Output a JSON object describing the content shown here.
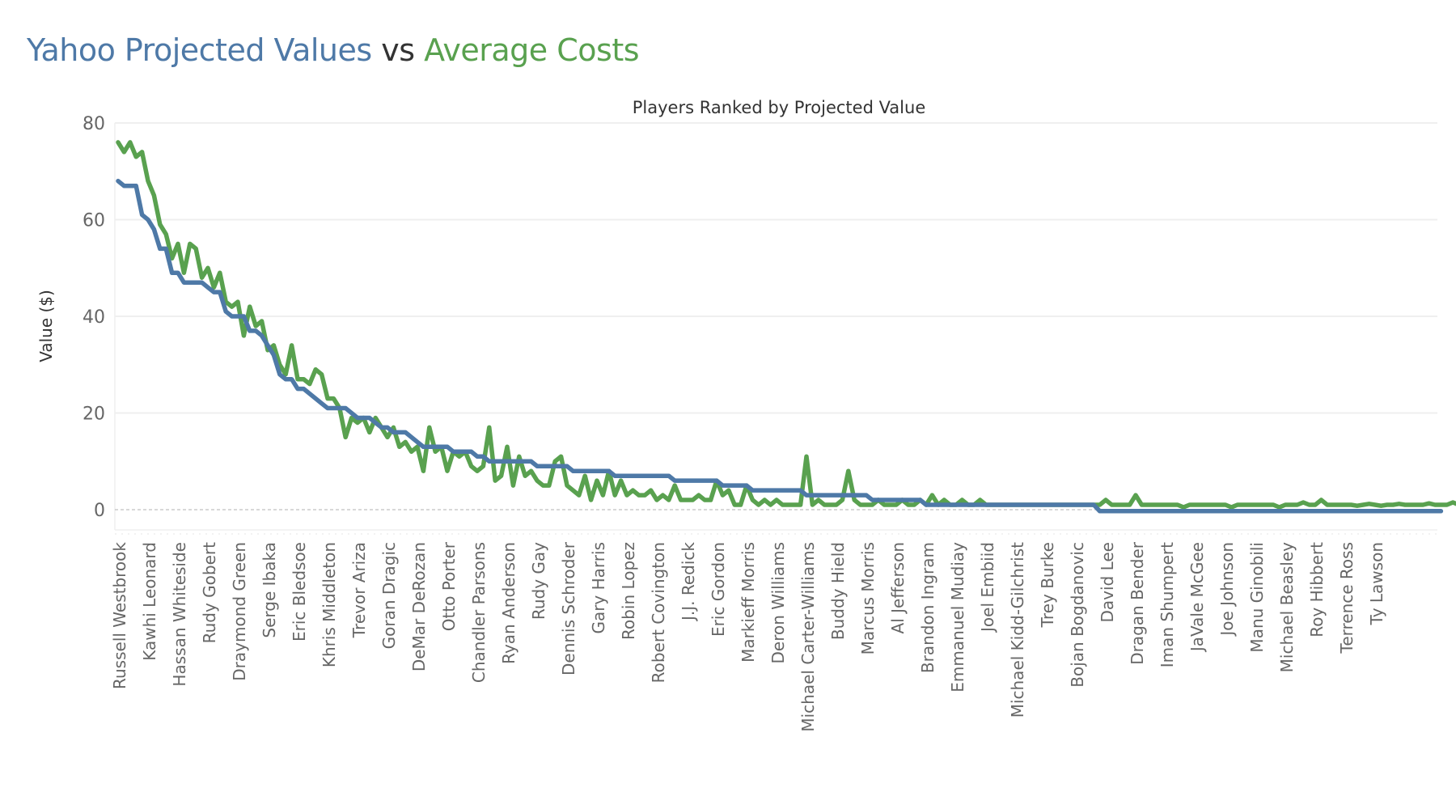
{
  "header": {
    "title_part1": "Yahoo Projected Values",
    "title_part2": " vs ",
    "title_part3": "Average Costs"
  },
  "colors": {
    "projected": "#4e79a7",
    "average_cost": "#59a14f",
    "grid": "#efefef",
    "zero_line": "#c0c0c0"
  },
  "chart_data": {
    "type": "line",
    "title": "Players Ranked by Projected Value",
    "xlabel": "",
    "ylabel": "Value ($)",
    "ylim": [
      -5,
      80
    ],
    "yticks": [
      0,
      20,
      40,
      60,
      80
    ],
    "grid": true,
    "legend": "title-colored",
    "x_label_every": 5,
    "x_tick_labels": [
      "Russell Westbrook",
      "Kawhi Leonard",
      "Hassan Whiteside",
      "Rudy Gobert",
      "Draymond Green",
      "Serge Ibaka",
      "Eric Bledsoe",
      "Khris Middleton",
      "Trevor Ariza",
      "Goran Dragic",
      "DeMar DeRozan",
      "Otto Porter",
      "Chandler Parsons",
      "Ryan Anderson",
      "Rudy Gay",
      "Dennis Schroder",
      "Gary Harris",
      "Robin Lopez",
      "Robert Covington",
      "J.J. Redick",
      "Eric Gordon",
      "Markieff Morris",
      "Deron Williams",
      "Michael Carter-Williams",
      "Buddy Hield",
      "Marcus Morris",
      "Al Jefferson",
      "Brandon Ingram",
      "Emmanuel Mudiay",
      "Joel Embiid",
      "Michael Kidd-Gilchrist",
      "Trey Burke",
      "Bojan Bogdanovic",
      "David Lee",
      "Dragan Bender",
      "Iman Shumpert",
      "JaVale McGee",
      "Joe Johnson",
      "Manu Ginobili",
      "Michael Beasley",
      "Roy Hibbert",
      "Terrence Ross",
      "Ty Lawson"
    ],
    "series": [
      {
        "name": "Yahoo Projected Values",
        "color": "#4e79a7",
        "values": [
          68,
          67,
          67,
          67,
          61,
          60,
          58,
          54,
          54,
          49,
          49,
          47,
          47,
          47,
          47,
          46,
          45,
          45,
          41,
          40,
          40,
          40,
          37,
          37,
          36,
          34,
          32,
          28,
          27,
          27,
          25,
          25,
          24,
          23,
          22,
          21,
          21,
          21,
          21,
          20,
          19,
          19,
          19,
          18,
          17,
          17,
          16,
          16,
          16,
          15,
          14,
          13,
          13,
          13,
          13,
          13,
          12,
          12,
          12,
          12,
          11,
          11,
          10,
          10,
          10,
          10,
          10,
          10,
          10,
          10,
          9,
          9,
          9,
          9,
          9,
          9,
          8,
          8,
          8,
          8,
          8,
          8,
          8,
          7,
          7,
          7,
          7,
          7,
          7,
          7,
          7,
          7,
          7,
          6,
          6,
          6,
          6,
          6,
          6,
          6,
          6,
          5,
          5,
          5,
          5,
          5,
          4,
          4,
          4,
          4,
          4,
          4,
          4,
          4,
          4,
          3,
          3,
          3,
          3,
          3,
          3,
          3,
          3,
          3,
          3,
          3,
          2,
          2,
          2,
          2,
          2,
          2,
          2,
          2,
          2,
          1,
          1,
          1,
          1,
          1,
          1,
          1,
          1,
          1,
          1,
          1,
          1,
          1,
          1,
          1,
          1,
          1,
          1,
          1,
          1,
          1,
          1,
          1,
          1,
          1,
          1,
          1,
          1,
          1,
          -0.3,
          -0.3,
          -0.3,
          -0.3,
          -0.3,
          -0.3,
          -0.3,
          -0.3,
          -0.3,
          -0.3,
          -0.3,
          -0.3,
          -0.3,
          -0.3,
          -0.3,
          -0.3,
          -0.3,
          -0.3,
          -0.3,
          -0.3,
          -0.3,
          -0.3,
          -0.3,
          -0.3,
          -0.3,
          -0.3,
          -0.3,
          -0.3,
          -0.3,
          -0.3,
          -0.3,
          -0.3,
          -0.3,
          -0.3,
          -0.3,
          -0.3,
          -0.3,
          -0.3,
          -0.3,
          -0.3,
          -0.3,
          -0.3,
          -0.3,
          -0.3,
          -0.3,
          -0.3,
          -0.3,
          -0.3,
          -0.3,
          -0.3,
          -0.3,
          -0.3,
          -0.3,
          -0.3,
          -0.3,
          -0.3,
          -0.3,
          -0.3
        ]
      },
      {
        "name": "Average Costs",
        "color": "#59a14f",
        "values": [
          76,
          74,
          76,
          73,
          74,
          68,
          65,
          59,
          57,
          52,
          55,
          49,
          55,
          54,
          48,
          50,
          46,
          49,
          43,
          42,
          43,
          36,
          42,
          38,
          39,
          33,
          34,
          30,
          28,
          34,
          27,
          27,
          26,
          29,
          28,
          23,
          23,
          21,
          15,
          19,
          18,
          19,
          16,
          19,
          17,
          15,
          17,
          13,
          14,
          12,
          13,
          8,
          17,
          12,
          13,
          8,
          12,
          11,
          12,
          9,
          8,
          9,
          17,
          6,
          7,
          13,
          5,
          11,
          7,
          8,
          6,
          5,
          5,
          10,
          11,
          5,
          4,
          3,
          7,
          2,
          6,
          3,
          8,
          3,
          6,
          3,
          4,
          3,
          3,
          4,
          2,
          3,
          2,
          5,
          2,
          2,
          2,
          3,
          2,
          2,
          6,
          3,
          4,
          1,
          1,
          5,
          2,
          1,
          2,
          1,
          2,
          1,
          1,
          1,
          1,
          11,
          1,
          2,
          1,
          1,
          1,
          2,
          8,
          2,
          1,
          1,
          1,
          2,
          1,
          1,
          1,
          2,
          1,
          1,
          2,
          1,
          3,
          1,
          2,
          1,
          1,
          2,
          1,
          1,
          2,
          1,
          1,
          1,
          1,
          1,
          1,
          1,
          1,
          1,
          1,
          1,
          1,
          1,
          1,
          1,
          1,
          1,
          1,
          1,
          1,
          2,
          1,
          1,
          1,
          1,
          3,
          1,
          1,
          1,
          1,
          1,
          1,
          1,
          0.5,
          1,
          1,
          1,
          1,
          1,
          1,
          1,
          0.5,
          1,
          1,
          1,
          1,
          1,
          1,
          1,
          0.5,
          1,
          1,
          1,
          1.5,
          1,
          1,
          2,
          1,
          1,
          1,
          1,
          1,
          0.8,
          1,
          1.2,
          1,
          0.8,
          1,
          1,
          1.2,
          1,
          1,
          1,
          1,
          1.3,
          1,
          1,
          1,
          1.5,
          1,
          1,
          1,
          1.2,
          1,
          1.4,
          1
        ]
      }
    ]
  }
}
